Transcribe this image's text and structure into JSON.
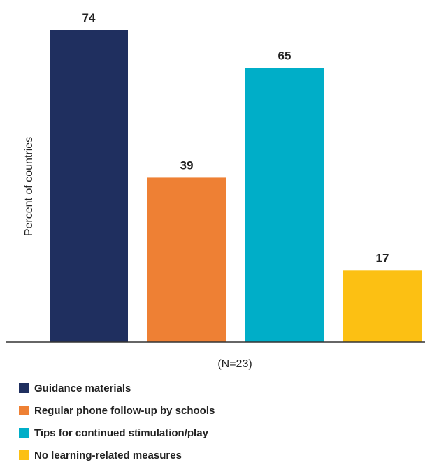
{
  "chart_data": {
    "type": "bar",
    "title": "",
    "xlabel": "(N=23)",
    "ylabel": "Percent of countries",
    "ylim": [
      0,
      74
    ],
    "grid": false,
    "legend_position": "bottom-left",
    "categories": [
      "Guidance materials",
      "Regular phone follow-up by schools",
      "Tips for continued stimulation/play",
      "No learning-related measures"
    ],
    "values": [
      74,
      39,
      65,
      17
    ],
    "colors": [
      "#1f2f5f",
      "#ee8034",
      "#00aec8",
      "#fcc013"
    ]
  },
  "legend": {
    "items": [
      {
        "label": "Guidance materials",
        "color": "#1f2f5f"
      },
      {
        "label": "Regular phone follow-up by schools",
        "color": "#ee8034"
      },
      {
        "label": "Tips for continued stimulation/play",
        "color": "#00aec8"
      },
      {
        "label": "No learning-related measures",
        "color": "#fcc013"
      }
    ]
  }
}
